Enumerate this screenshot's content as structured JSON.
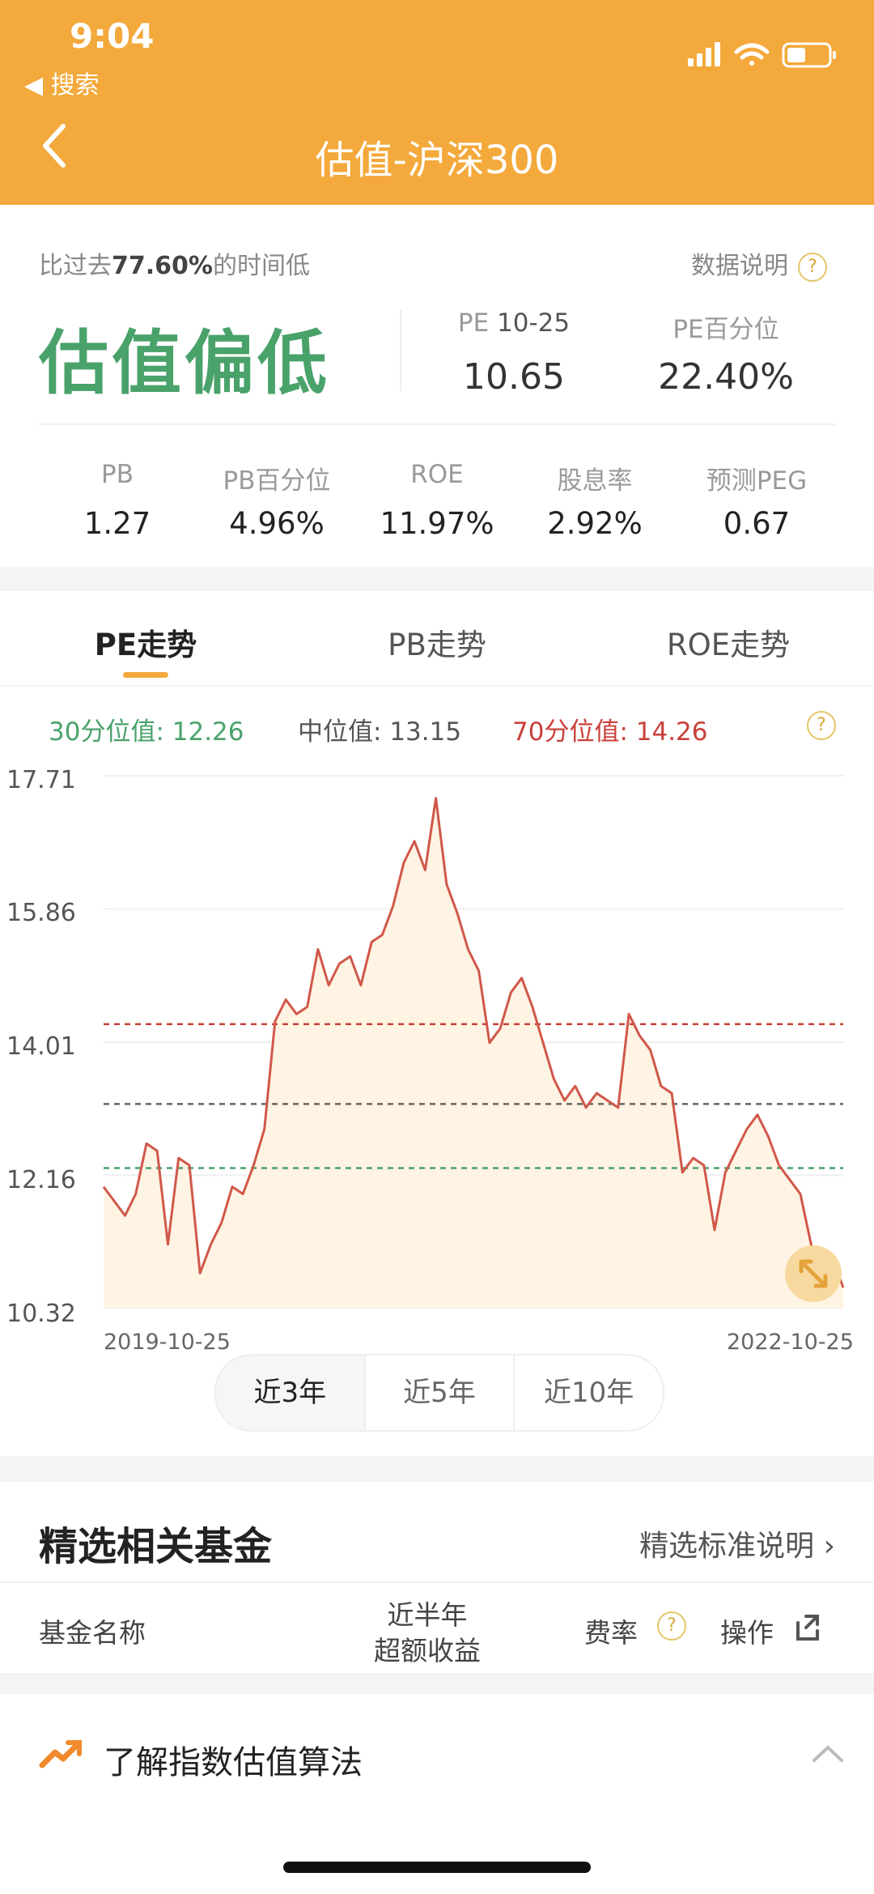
{
  "status_bar": {
    "time": "9:04",
    "back_app": "◀ 搜索"
  },
  "nav": {
    "title": "估值-沪深300"
  },
  "summary": {
    "comparison_prefix": "比过去",
    "comparison_pct": "77.60%",
    "comparison_suffix": "的时间低",
    "help_label": "数据说明",
    "verdict": "估值偏低",
    "pe_label": "PE",
    "pe_date": "10-25",
    "pe_value": "10.65",
    "pe_pct_label": "PE百分位",
    "pe_pct_value": "22.40%",
    "metrics": [
      {
        "label": "PB",
        "value": "1.27"
      },
      {
        "label": "PB百分位",
        "value": "4.96%"
      },
      {
        "label": "ROE",
        "value": "11.97%"
      },
      {
        "label": "股息率",
        "value": "2.92%"
      },
      {
        "label": "预测PEG",
        "value": "0.67"
      }
    ]
  },
  "tabs": [
    "PE走势",
    "PB走势",
    "ROE走势"
  ],
  "stats": {
    "p30_label": "30分位值:",
    "p30_value": "12.26",
    "median_label": "中位值:",
    "median_value": "13.15",
    "p70_label": "70分位值:",
    "p70_value": "14.26"
  },
  "colors": {
    "accent": "#f3a93b",
    "low": "#4aa26b",
    "high": "#c9403a",
    "line": "#d0584a"
  },
  "chart_data": {
    "type": "area",
    "x_start": "2019-10-25",
    "x_end": "2022-10-25",
    "ylim": [
      10.32,
      17.71
    ],
    "yticks": [
      "17.71",
      "15.86",
      "14.01",
      "12.16",
      "10.32"
    ],
    "reference_lines": [
      {
        "name": "70分位值",
        "value": 14.26,
        "color": "#c9403a"
      },
      {
        "name": "中位值",
        "value": 13.15,
        "color": "#666666"
      },
      {
        "name": "30分位值",
        "value": 12.26,
        "color": "#4aa26b"
      }
    ],
    "series": [
      {
        "values": [
          12.0,
          11.8,
          11.6,
          11.9,
          12.6,
          12.5,
          11.2,
          12.4,
          12.3,
          10.8,
          11.2,
          11.5,
          12.0,
          11.9,
          12.3,
          12.8,
          14.3,
          14.6,
          14.4,
          14.5,
          15.3,
          14.8,
          15.1,
          15.2,
          14.8,
          15.4,
          15.5,
          15.9,
          16.5,
          16.8,
          16.4,
          17.4,
          16.2,
          15.8,
          15.3,
          15.0,
          14.0,
          14.2,
          14.7,
          14.9,
          14.5,
          14.0,
          13.5,
          13.2,
          13.4,
          13.1,
          13.3,
          13.2,
          13.1,
          14.4,
          14.1,
          13.9,
          13.4,
          13.3,
          12.2,
          12.4,
          12.3,
          11.4,
          12.2,
          12.5,
          12.8,
          13.0,
          12.7,
          12.3,
          12.1,
          11.9,
          11.2,
          10.7,
          11.0,
          10.6
        ]
      }
    ]
  },
  "range_options": [
    "近3年",
    "近5年",
    "近10年"
  ],
  "funds": {
    "title": "精选相关基金",
    "criteria_link": "精选标准说明 ›",
    "columns": {
      "name": "基金名称",
      "return_line1": "近半年",
      "return_line2": "超额收益",
      "fee": "费率",
      "action": "操作"
    }
  },
  "bottom": {
    "learn_label": "了解指数估值算法"
  }
}
